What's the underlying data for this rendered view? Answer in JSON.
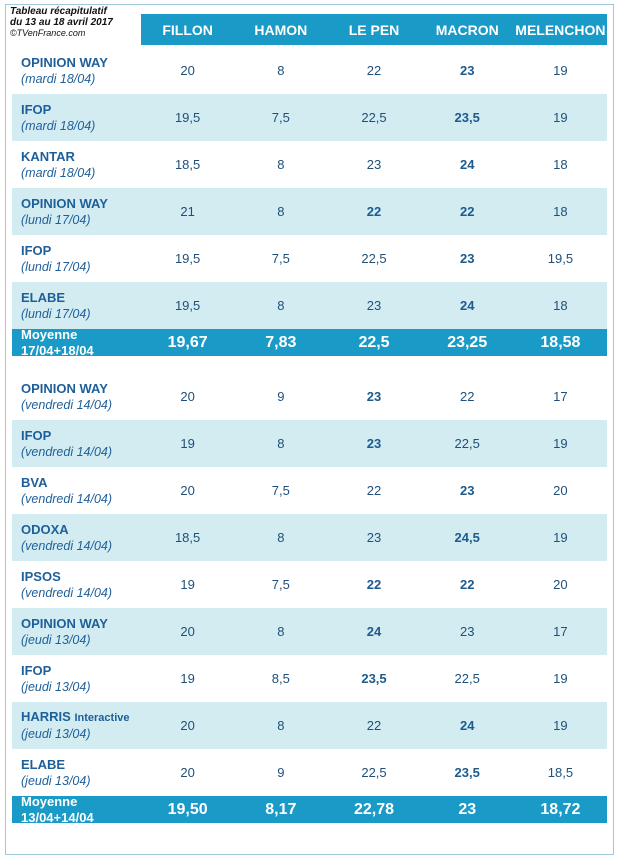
{
  "caption": {
    "title": "Tableau récapitulatif",
    "subtitle": "du 13 au 18 avril 2017",
    "source": "©TVenFrance.com"
  },
  "colors": {
    "header": "#1a9ac7",
    "shade": "#d2ecf2",
    "text": "#1f5f99"
  },
  "chart_data": {
    "type": "table",
    "columns": [
      "FILLON",
      "HAMON",
      "LE PEN",
      "MACRON",
      "MELENCHON"
    ],
    "rows": [
      {
        "institute": "OPINION WAY",
        "ext": "",
        "date": "(mardi 18/04)",
        "values": [
          "20",
          "8",
          "22",
          "23",
          "19"
        ],
        "bold": [
          3
        ],
        "kind": "poll"
      },
      {
        "institute": "IFOP",
        "ext": "",
        "date": "(mardi 18/04)",
        "values": [
          "19,5",
          "7,5",
          "22,5",
          "23,5",
          "19"
        ],
        "bold": [
          3
        ],
        "kind": "poll"
      },
      {
        "institute": "KANTAR",
        "ext": "",
        "date": "(mardi 18/04)",
        "values": [
          "18,5",
          "8",
          "23",
          "24",
          "18"
        ],
        "bold": [
          3
        ],
        "kind": "poll"
      },
      {
        "institute": "OPINION WAY",
        "ext": "",
        "date": "(lundi 17/04)",
        "values": [
          "21",
          "8",
          "22",
          "22",
          "18"
        ],
        "bold": [
          2,
          3
        ],
        "kind": "poll"
      },
      {
        "institute": "IFOP",
        "ext": "",
        "date": "(lundi 17/04)",
        "values": [
          "19,5",
          "7,5",
          "22,5",
          "23",
          "19,5"
        ],
        "bold": [
          3
        ],
        "kind": "poll"
      },
      {
        "institute": "ELABE",
        "ext": "",
        "date": "(lundi 17/04)",
        "values": [
          "19,5",
          "8",
          "23",
          "24",
          "18"
        ],
        "bold": [
          3
        ],
        "kind": "poll"
      },
      {
        "institute": "Moyenne 17/04+18/04",
        "ext": "",
        "date": "",
        "values": [
          "19,67",
          "7,83",
          "22,5",
          "23,25",
          "18,58"
        ],
        "bold": [],
        "kind": "avg"
      },
      {
        "institute": "OPINION WAY",
        "ext": "",
        "date": "(vendredi 14/04)",
        "values": [
          "20",
          "9",
          "23",
          "22",
          "17"
        ],
        "bold": [
          2
        ],
        "kind": "poll"
      },
      {
        "institute": "IFOP",
        "ext": "",
        "date": "(vendredi 14/04)",
        "values": [
          "19",
          "8",
          "23",
          "22,5",
          "19"
        ],
        "bold": [
          2
        ],
        "kind": "poll"
      },
      {
        "institute": "BVA",
        "ext": "",
        "date": "(vendredi 14/04)",
        "values": [
          "20",
          "7,5",
          "22",
          "23",
          "20"
        ],
        "bold": [
          3
        ],
        "kind": "poll"
      },
      {
        "institute": "ODOXA",
        "ext": "",
        "date": "(vendredi 14/04)",
        "values": [
          "18,5",
          "8",
          "23",
          "24,5",
          "19"
        ],
        "bold": [
          3
        ],
        "kind": "poll"
      },
      {
        "institute": "IPSOS",
        "ext": "",
        "date": "(vendredi 14/04)",
        "values": [
          "19",
          "7,5",
          "22",
          "22",
          "20"
        ],
        "bold": [
          2,
          3
        ],
        "kind": "poll"
      },
      {
        "institute": "OPINION WAY",
        "ext": "",
        "date": "(jeudi 13/04)",
        "values": [
          "20",
          "8",
          "24",
          "23",
          "17"
        ],
        "bold": [
          2
        ],
        "kind": "poll"
      },
      {
        "institute": "IFOP",
        "ext": "",
        "date": "(jeudi 13/04)",
        "values": [
          "19",
          "8,5",
          "23,5",
          "22,5",
          "19"
        ],
        "bold": [
          2
        ],
        "kind": "poll"
      },
      {
        "institute": "HARRIS",
        "ext": "Interactive",
        "date": "(jeudi 13/04)",
        "values": [
          "20",
          "8",
          "22",
          "24",
          "19"
        ],
        "bold": [
          3
        ],
        "kind": "poll"
      },
      {
        "institute": "ELABE",
        "ext": "",
        "date": "(jeudi 13/04)",
        "values": [
          "20",
          "9",
          "22,5",
          "23,5",
          "18,5"
        ],
        "bold": [
          3
        ],
        "kind": "poll"
      },
      {
        "institute": "Moyenne 13/04+14/04",
        "ext": "",
        "date": "",
        "values": [
          "19,50",
          "8,17",
          "22,78",
          "23",
          "18,72"
        ],
        "bold": [],
        "kind": "avg"
      }
    ]
  }
}
